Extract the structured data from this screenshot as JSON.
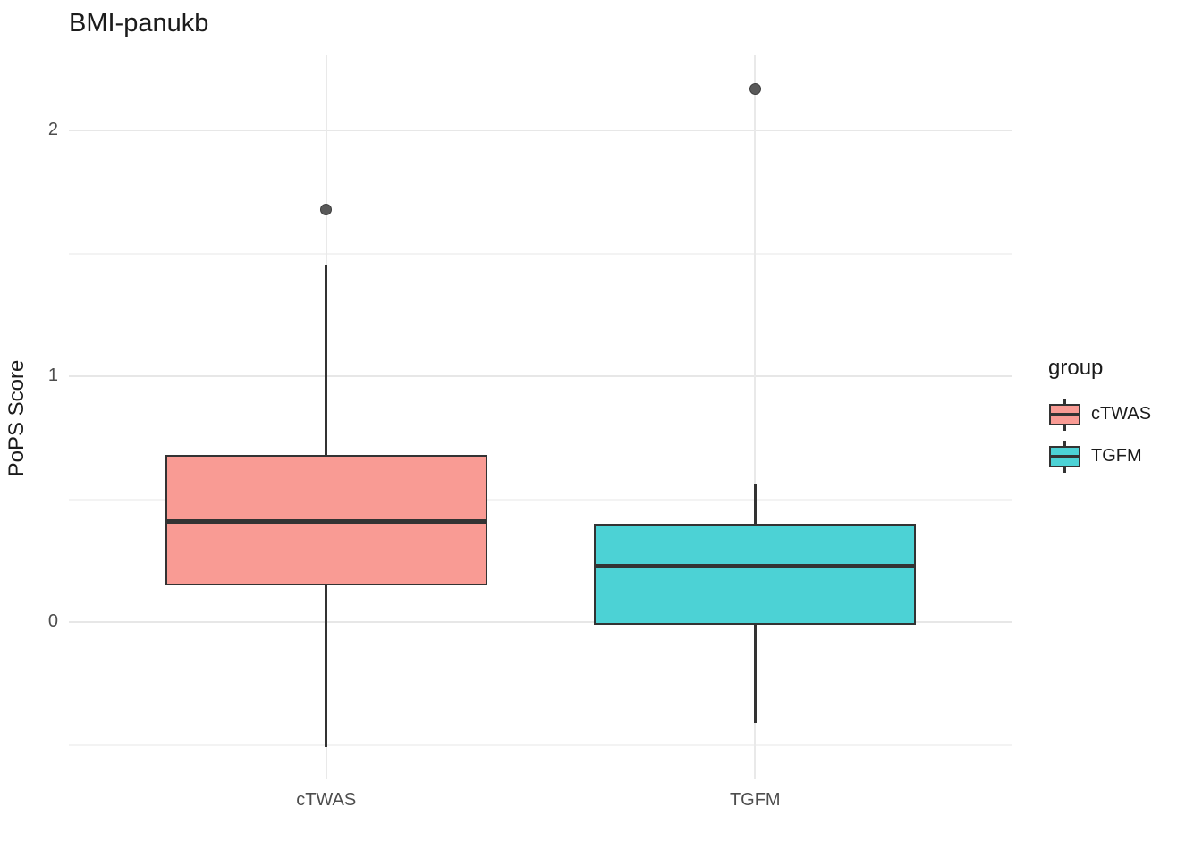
{
  "chart_data": {
    "type": "boxplot",
    "title": "BMI-panukb",
    "xlabel": "",
    "ylabel": "PoPS Score",
    "categories": [
      "cTWAS",
      "TGFM"
    ],
    "ylim": [
      -0.64,
      2.31
    ],
    "y_major_ticks": [
      0,
      1,
      2
    ],
    "y_minor_ticks": [
      -0.5,
      0.5,
      1.5
    ],
    "grid": "on",
    "legend_position": "right",
    "series": [
      {
        "name": "cTWAS",
        "fill": "#F99B94",
        "lower_whisker": -0.51,
        "q1": 0.15,
        "median": 0.41,
        "q3": 0.68,
        "upper_whisker": 1.45,
        "outliers": [
          1.68
        ]
      },
      {
        "name": "TGFM",
        "fill": "#4CD2D5",
        "lower_whisker": -0.41,
        "q1": -0.01,
        "median": 0.23,
        "q3": 0.4,
        "upper_whisker": 0.56,
        "outliers": [
          2.17
        ]
      }
    ]
  },
  "legend": {
    "title": "group",
    "entries": [
      {
        "label": "cTWAS",
        "color": "#F99B94"
      },
      {
        "label": "TGFM",
        "color": "#4CD2D5"
      }
    ]
  },
  "colors": {
    "box_stroke": "#333333",
    "median_stroke": "#333333",
    "outlier_fill": "#595959",
    "outlier_stroke": "#3e3e3e",
    "grid_major": "#E7E7E7",
    "grid_minor": "#F3F3F3",
    "grid_vertical": "#E9E9E9",
    "tick_text": "#4D4D4D",
    "title_text": "#1B1B1B",
    "background": "#FFFFFF"
  }
}
